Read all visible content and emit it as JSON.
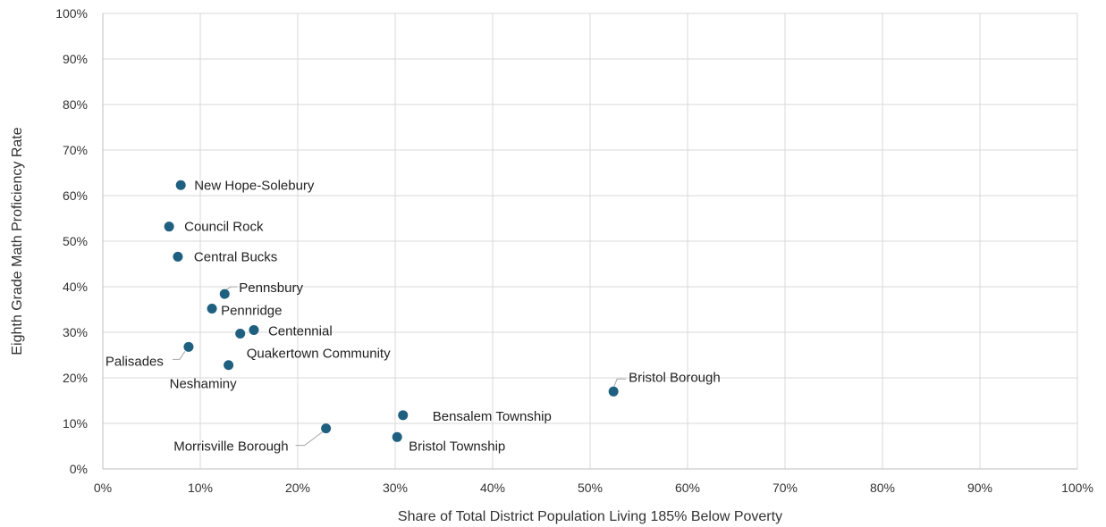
{
  "chart_data": {
    "type": "scatter",
    "title": "",
    "xlabel": "Share of Total District Population Living 185% Below Poverty",
    "ylabel": "Eighth Grade Math Proficiency Rate",
    "xlim": [
      0,
      100
    ],
    "ylim": [
      0,
      100
    ],
    "x_ticks": [
      "0%",
      "10%",
      "20%",
      "30%",
      "40%",
      "50%",
      "60%",
      "70%",
      "80%",
      "90%",
      "100%"
    ],
    "y_ticks": [
      "0%",
      "10%",
      "20%",
      "30%",
      "40%",
      "50%",
      "60%",
      "70%",
      "80%",
      "90%",
      "100%"
    ],
    "grid": true,
    "legend": "none",
    "marker_color": "#1f5f80",
    "points": [
      {
        "label": "New Hope-Solebury",
        "x": 8.0,
        "y": 62.3
      },
      {
        "label": "Council Rock",
        "x": 6.8,
        "y": 53.2
      },
      {
        "label": "Central Bucks",
        "x": 7.7,
        "y": 46.6
      },
      {
        "label": "Pennsbury",
        "x": 12.5,
        "y": 38.4
      },
      {
        "label": "Pennridge",
        "x": 11.2,
        "y": 35.2
      },
      {
        "label": "Centennial",
        "x": 15.5,
        "y": 30.5
      },
      {
        "label": "Quakertown Community",
        "x": 14.1,
        "y": 29.7
      },
      {
        "label": "Palisades",
        "x": 8.8,
        "y": 26.8
      },
      {
        "label": "Neshaminy",
        "x": 12.9,
        "y": 22.8
      },
      {
        "label": "Bristol Borough",
        "x": 52.4,
        "y": 17.0
      },
      {
        "label": "Bensalem Township",
        "x": 30.8,
        "y": 11.8
      },
      {
        "label": "Morrisville Borough",
        "x": 22.9,
        "y": 8.9
      },
      {
        "label": "Bristol Township",
        "x": 30.2,
        "y": 7.0
      }
    ]
  }
}
